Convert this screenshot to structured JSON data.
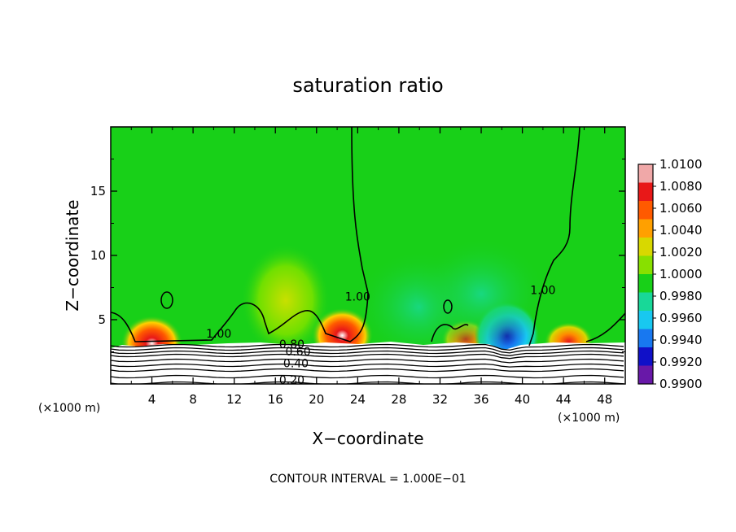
{
  "chart_data": {
    "type": "heatmap",
    "title": "saturation ratio",
    "xlabel": "X−coordinate",
    "ylabel": "Z−coordinate",
    "x_unit_left": "(×1000 m)",
    "x_unit_right": "(×1000 m)",
    "footer": "CONTOUR INTERVAL = 1.000E−01",
    "xlim": [
      0,
      50
    ],
    "ylim": [
      0,
      20
    ],
    "xticks": [
      4,
      8,
      12,
      16,
      20,
      24,
      28,
      32,
      36,
      40,
      44,
      48
    ],
    "yticks": [
      5,
      10,
      15
    ],
    "grid": false,
    "colorbar": {
      "placement": "right",
      "levels": [
        "1.0100",
        "1.0080",
        "1.0060",
        "1.0040",
        "1.0020",
        "1.0000",
        "0.9980",
        "0.9960",
        "0.9940",
        "0.9920",
        "0.9900"
      ],
      "colors": [
        "#f0a8a8",
        "#e81818",
        "#ff5a00",
        "#ffa000",
        "#d8d800",
        "#88e000",
        "#18d018",
        "#18d898",
        "#18c8f0",
        "#1878f0",
        "#1010c8",
        "#6818a8"
      ]
    },
    "background_value": 1.0,
    "terrain_height": 3.3,
    "contour_labels": [
      {
        "text": "1.00",
        "x": 10.5,
        "z": 3.6
      },
      {
        "text": "1.00",
        "x": 24.0,
        "z": 6.5
      },
      {
        "text": "1.00",
        "x": 42.0,
        "z": 7.0
      },
      {
        "text": "0.80",
        "x": 17.6,
        "z": 2.8
      },
      {
        "text": "0.60",
        "x": 18.2,
        "z": 2.2
      },
      {
        "text": "0.40",
        "x": 18.0,
        "z": 1.3
      },
      {
        "text": "0.20",
        "x": 17.6,
        "z": 0.0
      }
    ],
    "anomalies": [
      {
        "x": 4.0,
        "z": 3.6,
        "value": 1.008
      },
      {
        "x": 17.0,
        "z": 6.5,
        "value": 1.002
      },
      {
        "x": 22.5,
        "z": 4.2,
        "value": 1.009
      },
      {
        "x": 34.5,
        "z": 3.8,
        "value": 1.006
      },
      {
        "x": 38.5,
        "z": 4.0,
        "value": 0.992
      },
      {
        "x": 44.5,
        "z": 3.6,
        "value": 1.007
      },
      {
        "x": 30.0,
        "z": 6.0,
        "value": 0.9985
      },
      {
        "x": 36.0,
        "z": 7.0,
        "value": 0.9975
      }
    ]
  }
}
